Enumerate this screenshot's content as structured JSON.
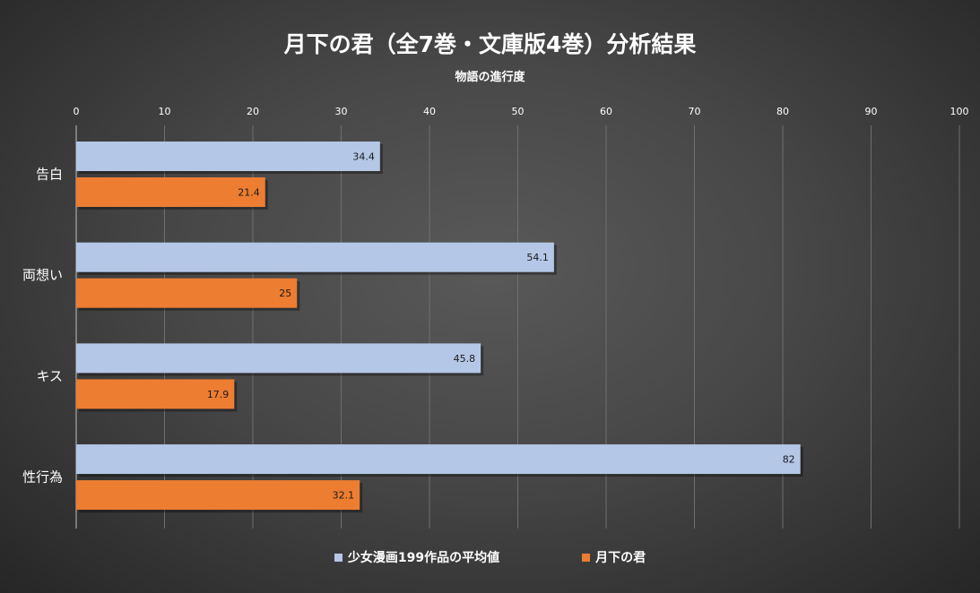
{
  "chart_data": {
    "type": "bar",
    "orientation": "horizontal",
    "title": "月下の君（全7巻・文庫版4巻）分析結果",
    "xlabel": "物語の進行度",
    "xlim": [
      0,
      100
    ],
    "xticks": [
      0,
      10,
      20,
      30,
      40,
      50,
      60,
      70,
      80,
      90,
      100
    ],
    "categories": [
      "告白",
      "両想い",
      "キス",
      "性行為"
    ],
    "series": [
      {
        "name": "少女漫画199作品の平均値",
        "color": "#B4C7E7",
        "values": [
          34.4,
          54.1,
          45.8,
          82
        ]
      },
      {
        "name": "月下の君",
        "color": "#ED7D31",
        "values": [
          21.4,
          25,
          17.9,
          32.1
        ]
      }
    ],
    "grid": true,
    "legend_position": "bottom"
  }
}
